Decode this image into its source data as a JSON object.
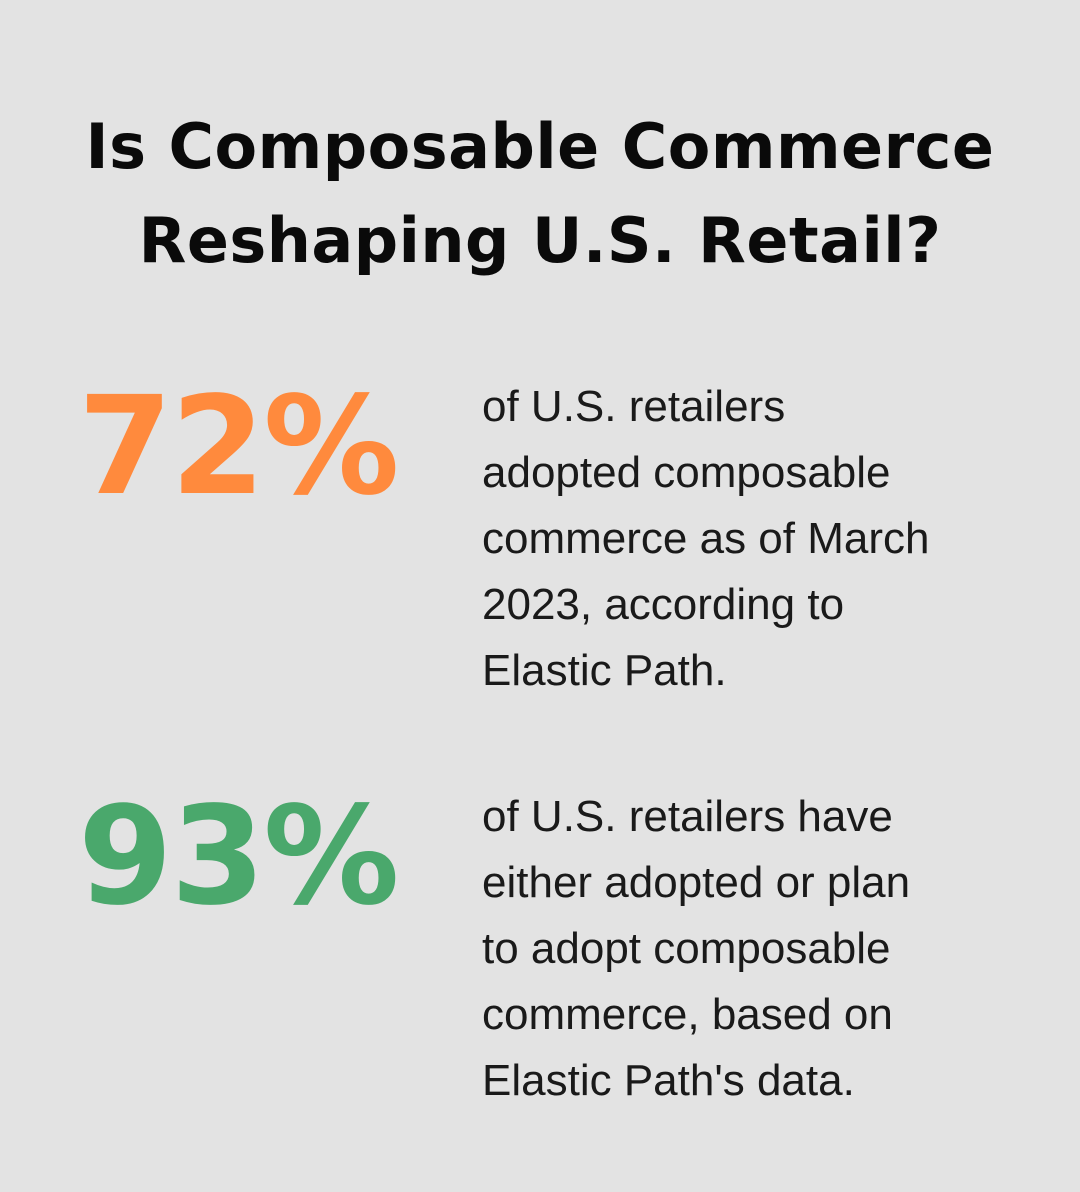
{
  "title_lines": [
    "Is Composable Commerce",
    "Reshaping U.S. Retail?"
  ],
  "stats": [
    {
      "value": "72%",
      "color": "#ff8a3d",
      "description_lines": [
        "of U.S. retailers",
        "adopted composable",
        "commerce as of March",
        "2023, according to",
        "Elastic Path."
      ]
    },
    {
      "value": "93%",
      "color": "#4aa86c",
      "description_lines": [
        "of U.S. retailers have",
        "either adopted or plan",
        "to adopt composable",
        "commerce, based on",
        "Elastic Path's data."
      ]
    }
  ]
}
